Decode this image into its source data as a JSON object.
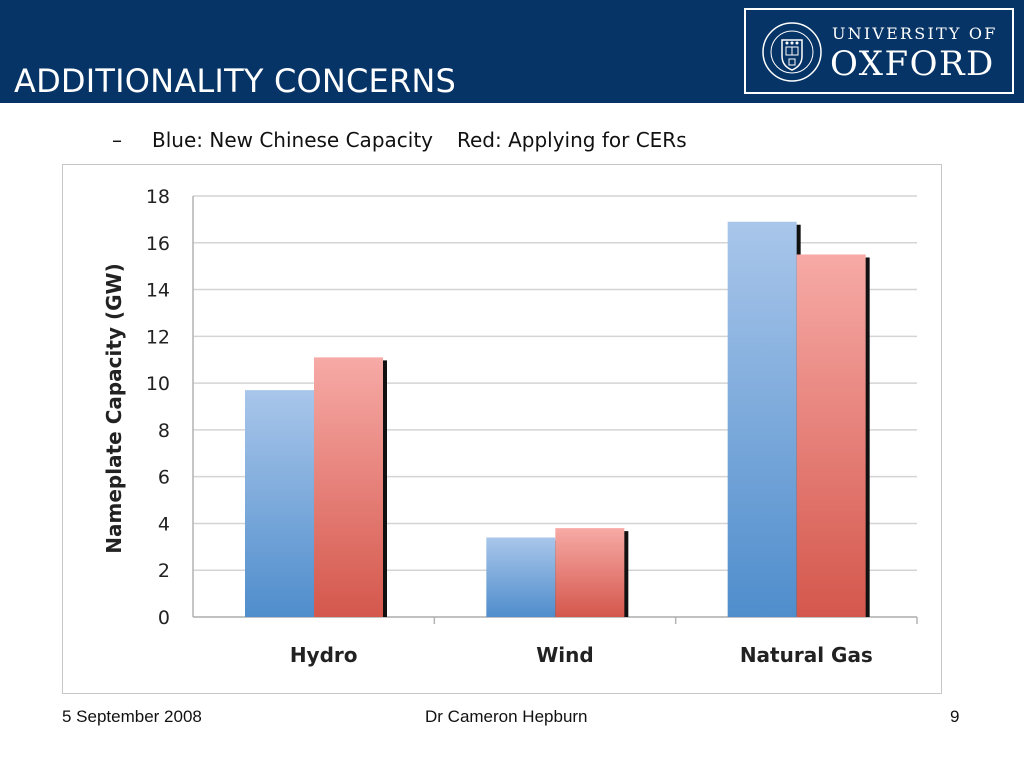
{
  "slide": {
    "title": "ADDITIONALITY CONCERNS",
    "bullet": "–",
    "legend_note_blue": "Blue: New Chinese Capacity",
    "legend_note_red": "Red: Applying for CERs"
  },
  "logo": {
    "line1": "UNIVERSITY OF",
    "line2": "OXFORD",
    "crest_icon": "oxford-crest-icon"
  },
  "footer": {
    "date": "5 September 2008",
    "author": "Dr Cameron Hepburn",
    "page": "9"
  },
  "colors": {
    "header_bg": "#073466",
    "blue_top": "#a9c6ea",
    "blue_bottom": "#4f8dcc",
    "red_top": "#f7aaa6",
    "red_bottom": "#d4574c"
  },
  "chart_data": {
    "type": "bar",
    "categories": [
      "Hydro",
      "Wind",
      "Natural Gas"
    ],
    "series": [
      {
        "values": [
          9.7,
          3.4,
          16.9
        ]
      },
      {
        "values": [
          11.1,
          3.8,
          15.5
        ]
      }
    ],
    "title": "",
    "xlabel": "",
    "ylabel": "Nameplate Capacity (GW)",
    "ylim": [
      0,
      18
    ],
    "yticks": [
      0,
      2,
      4,
      6,
      8,
      10,
      12,
      14,
      16,
      18
    ],
    "grid": true
  }
}
